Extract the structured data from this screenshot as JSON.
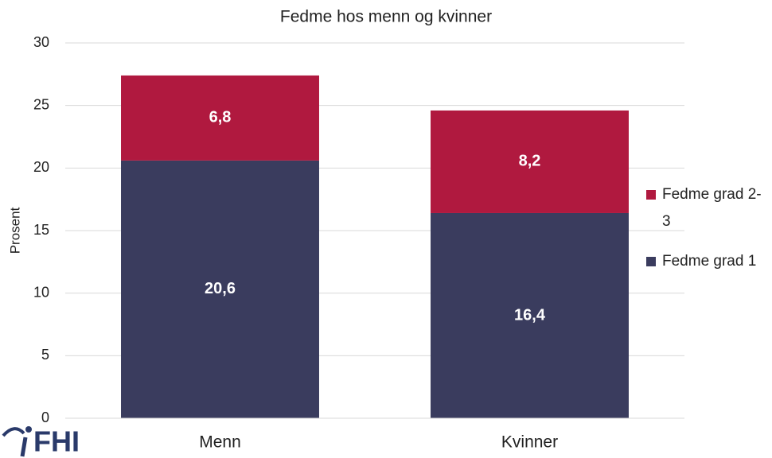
{
  "chart_data": {
    "type": "stacked_bar",
    "title": "Fedme hos menn og kvinner",
    "y_label": "Prosent",
    "categories": [
      "Menn",
      "Kvinner"
    ],
    "series": [
      {
        "name": "Fedme grad 1",
        "color": "#3a3c5e",
        "values": [
          20.6,
          16.4
        ],
        "value_labels": [
          "20,6",
          "16,4"
        ]
      },
      {
        "name": "Fedme grad 2-3",
        "color": "#b0193f",
        "values": [
          6.8,
          8.2
        ],
        "value_labels": [
          "6,8",
          "8,2"
        ]
      }
    ],
    "ylim": [
      0,
      30
    ],
    "yticks": [
      0,
      5,
      10,
      15,
      20,
      25,
      30
    ],
    "grid": true,
    "legend": "right"
  },
  "logo_text": "FHI"
}
